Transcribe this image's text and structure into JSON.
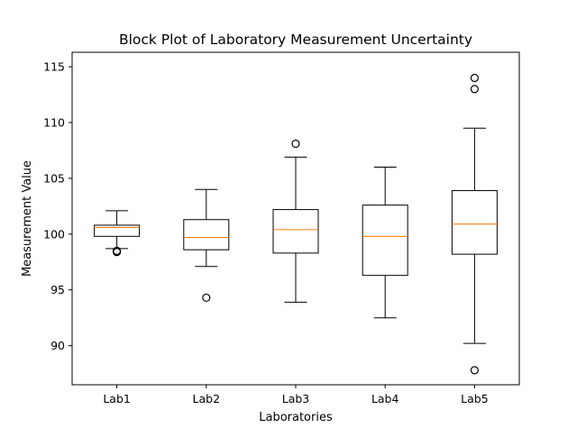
{
  "chart_data": {
    "type": "boxplot",
    "title": "Block Plot of Laboratory Measurement Uncertainty",
    "xlabel": "Laboratories",
    "ylabel": "Measurement Value",
    "ylim": [
      86.5,
      116.3
    ],
    "yticks": [
      90,
      95,
      100,
      105,
      110,
      115
    ],
    "grid": false,
    "colors": {
      "box": "#000000",
      "median": "#ff7f0e",
      "flier": "#000000"
    },
    "categories": [
      "Lab1",
      "Lab2",
      "Lab3",
      "Lab4",
      "Lab5"
    ],
    "boxes": [
      {
        "label": "Lab1",
        "whisker_low": 98.7,
        "q1": 99.8,
        "median": 100.6,
        "q3": 100.8,
        "whisker_high": 102.1,
        "outliers": [
          98.4,
          98.5
        ]
      },
      {
        "label": "Lab2",
        "whisker_low": 97.1,
        "q1": 98.6,
        "median": 99.7,
        "q3": 101.3,
        "whisker_high": 104.0,
        "outliers": [
          94.3
        ]
      },
      {
        "label": "Lab3",
        "whisker_low": 93.9,
        "q1": 98.3,
        "median": 100.4,
        "q3": 102.2,
        "whisker_high": 106.9,
        "outliers": [
          108.1
        ]
      },
      {
        "label": "Lab4",
        "whisker_low": 92.5,
        "q1": 96.3,
        "median": 99.8,
        "q3": 102.6,
        "whisker_high": 106.0,
        "outliers": []
      },
      {
        "label": "Lab5",
        "whisker_low": 90.2,
        "q1": 98.2,
        "median": 100.9,
        "q3": 103.9,
        "whisker_high": 109.5,
        "outliers": [
          87.8,
          113.0,
          114.0
        ]
      }
    ]
  }
}
